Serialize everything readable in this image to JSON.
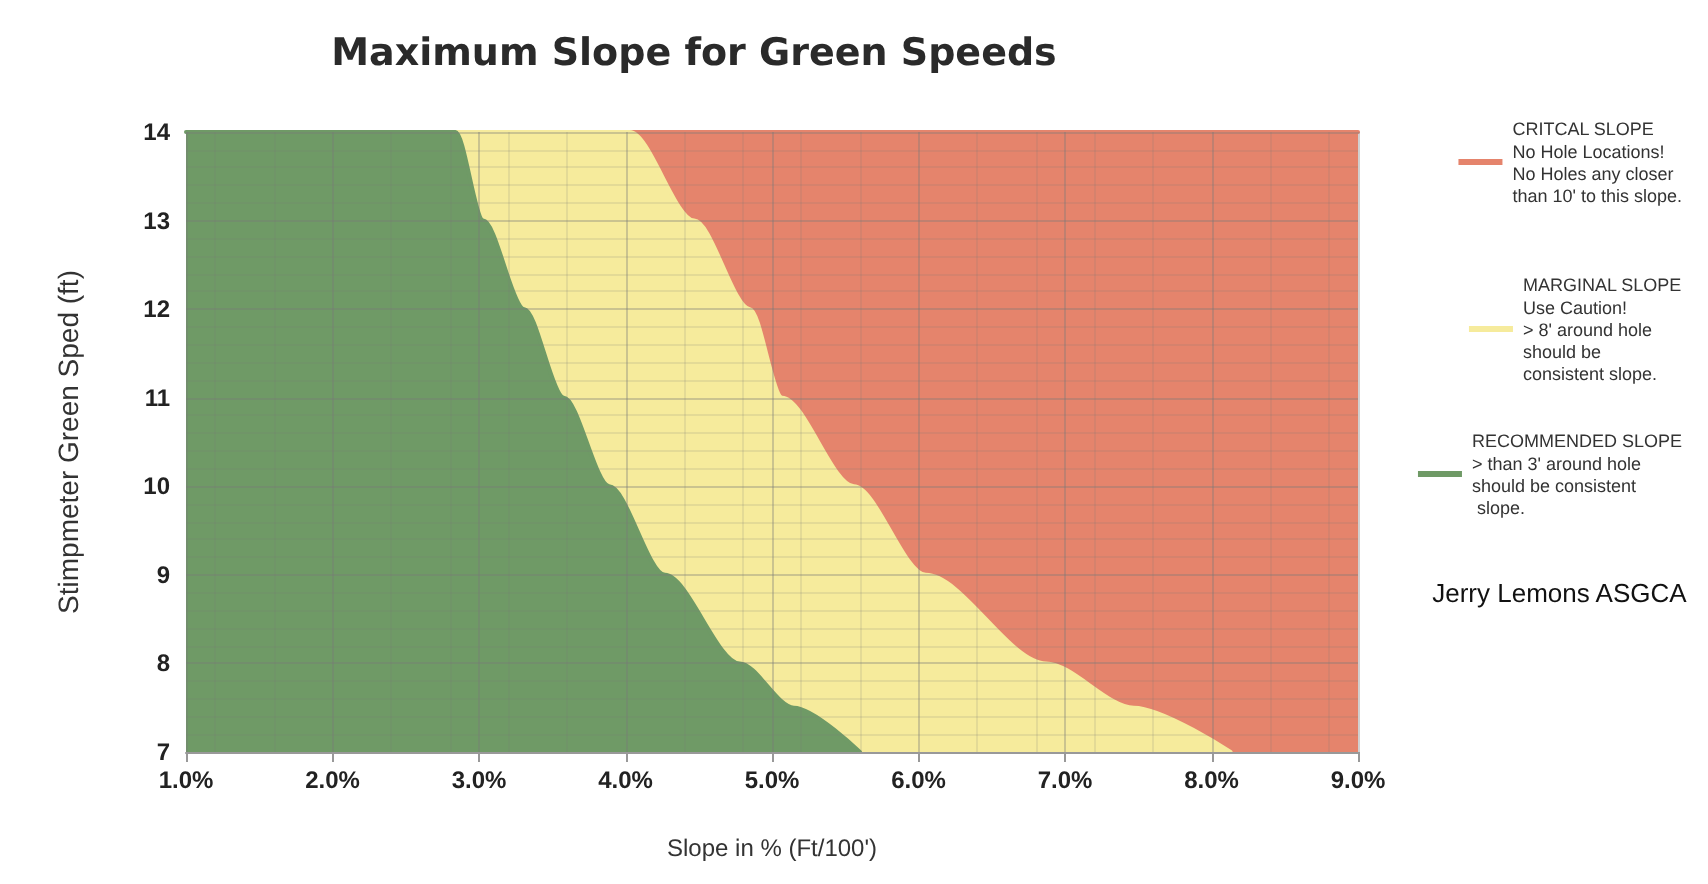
{
  "chart_data": {
    "type": "area",
    "title": "Maximum Slope for Green Speeds",
    "xlabel": "Slope in % (Ft/100')",
    "ylabel": "Stimpmeter Green Sped (ft)",
    "series": [
      {
        "name": "CRITCAL SLOPE",
        "color": "#e5846c",
        "x": [
          4.03,
          9
        ],
        "values": [
          14,
          14
        ]
      },
      {
        "name": "MARGINAL SLOPE",
        "color": "#f6eb9c",
        "x": [
          2.84,
          4.03,
          4.47,
          4.85,
          5.07,
          5.56,
          6.05,
          6.87,
          7.47,
          8.13
        ],
        "values": [
          14,
          14,
          13,
          12,
          11,
          10,
          9,
          8,
          7.5,
          7
        ]
      },
      {
        "name": "RECOMMENDED SLOPE",
        "color": "#6f9a66",
        "x": [
          1,
          2.84,
          3.03,
          3.31,
          3.58,
          3.89,
          4.27,
          4.78,
          5.15,
          5.6
        ],
        "values": [
          14,
          14,
          13,
          12,
          11,
          10,
          9,
          8,
          7.5,
          7
        ]
      }
    ],
    "annotations": [
      "No Hole Locations!\nNo Holes any closer\nthan 10' to this slope.",
      "Use Caution!\n> 8' around hole\nshould be\nconsistent slope.",
      "> than 3' around hole\nshould be consistent\n slope.",
      "Jerry Lemons ASGCA"
    ],
    "xlim": [
      1,
      9
    ],
    "xticks": [
      {
        "value": 1,
        "label": "1.0%"
      },
      {
        "value": 2,
        "label": "2.0%"
      },
      {
        "value": 3,
        "label": "3.0%"
      },
      {
        "value": 4,
        "label": "4.0%"
      },
      {
        "value": 5,
        "label": "5.0%"
      },
      {
        "value": 6,
        "label": "6.0%"
      },
      {
        "value": 7,
        "label": "7.0%"
      },
      {
        "value": 8,
        "label": "8.0%"
      },
      {
        "value": 9,
        "label": "9.0%"
      }
    ],
    "ylim": [
      7,
      14
    ],
    "yticks": [
      7,
      8,
      9,
      10,
      11,
      12,
      13,
      14
    ],
    "grid": true,
    "legend": "right",
    "marker": "none",
    "line_style": "solid"
  }
}
